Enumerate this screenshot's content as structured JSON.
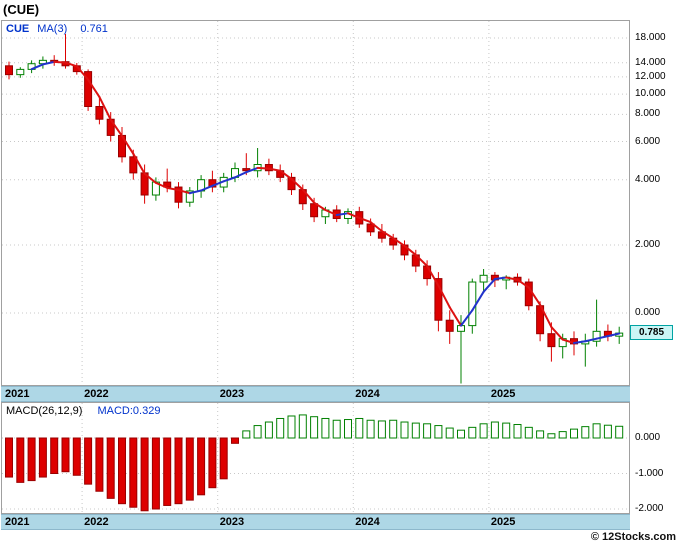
{
  "title": "(CUE)",
  "watermark": "© 12Stocks.com",
  "price_panel": {
    "legend": {
      "symbol": "CUE",
      "ma_label": "MA(3)",
      "ma_value": "0.761"
    },
    "last_price_tag": "0.785",
    "ytick_labels": [
      "18.000",
      "14.000",
      "12.000",
      "10.000",
      "8.000",
      "6.000",
      "4.000",
      "2.000",
      "0.000"
    ]
  },
  "macd_panel": {
    "legend_left": "MACD(26,12,9)",
    "legend_right": "MACD:0.329",
    "ytick_labels": [
      "0.000",
      "-1.000",
      "-2.000"
    ]
  },
  "x_axis": {
    "year_labels": [
      "2021",
      "2022",
      "2023",
      "2024",
      "2025"
    ]
  },
  "colors": {
    "up": "#008000",
    "down": "#dd0000",
    "down_border": "#990000",
    "ma_up": "#2233cc",
    "ma_down": "#dd1111",
    "grid": "#c8c8c8",
    "band_bg": "#aed7e6",
    "tag_bg": "#c9f5f5",
    "tag_border": "#00a3a3",
    "legend_blue": "#0033cc"
  },
  "chart_data": {
    "type": "candlestick+macd",
    "interval": "monthly",
    "ma_period": 3,
    "indicator": "MACD(26,12,9)",
    "price_ylim_labels": [
      18,
      1
    ],
    "macd_ylim": [
      -2.2,
      0.8
    ],
    "year_grid_indices": [
      null,
      7,
      19,
      31,
      43
    ],
    "candles": [
      [
        13.4,
        14.0,
        11.6,
        12.2
      ],
      [
        12.2,
        13.2,
        11.8,
        12.9
      ],
      [
        12.9,
        14.2,
        12.4,
        13.7
      ],
      [
        13.7,
        14.8,
        13.0,
        14.2
      ],
      [
        14.2,
        15.0,
        13.4,
        14.0
      ],
      [
        14.0,
        18.8,
        13.0,
        13.4
      ],
      [
        13.4,
        13.8,
        12.2,
        12.6
      ],
      [
        12.6,
        12.9,
        8.3,
        8.7
      ],
      [
        8.7,
        9.6,
        7.2,
        7.6
      ],
      [
        7.6,
        8.2,
        6.0,
        6.4
      ],
      [
        6.4,
        7.0,
        4.8,
        5.1
      ],
      [
        5.1,
        5.5,
        4.0,
        4.3
      ],
      [
        4.3,
        4.7,
        3.1,
        3.4
      ],
      [
        3.4,
        4.1,
        3.2,
        3.9
      ],
      [
        3.9,
        4.5,
        3.5,
        3.7
      ],
      [
        3.7,
        3.9,
        2.95,
        3.15
      ],
      [
        3.15,
        3.7,
        3.0,
        3.55
      ],
      [
        3.55,
        4.2,
        3.3,
        4.0
      ],
      [
        4.0,
        4.4,
        3.5,
        3.7
      ],
      [
        3.7,
        4.3,
        3.5,
        4.1
      ],
      [
        4.1,
        4.8,
        3.9,
        4.5
      ],
      [
        4.5,
        5.3,
        4.2,
        4.4
      ],
      [
        4.4,
        5.6,
        4.1,
        4.7
      ],
      [
        4.7,
        5.0,
        4.2,
        4.4
      ],
      [
        4.4,
        4.7,
        3.9,
        4.1
      ],
      [
        4.1,
        4.3,
        3.4,
        3.6
      ],
      [
        3.6,
        3.8,
        2.9,
        3.1
      ],
      [
        3.1,
        3.3,
        2.55,
        2.7
      ],
      [
        2.7,
        3.0,
        2.5,
        2.9
      ],
      [
        2.9,
        3.05,
        2.55,
        2.65
      ],
      [
        2.65,
        2.95,
        2.5,
        2.85
      ],
      [
        2.85,
        3.0,
        2.4,
        2.5
      ],
      [
        2.5,
        2.65,
        2.2,
        2.3
      ],
      [
        2.3,
        2.5,
        2.05,
        2.15
      ],
      [
        2.15,
        2.25,
        1.9,
        2.0
      ],
      [
        2.0,
        2.1,
        1.7,
        1.8
      ],
      [
        1.8,
        1.9,
        1.5,
        1.6
      ],
      [
        1.6,
        1.7,
        1.3,
        1.4
      ],
      [
        1.4,
        1.5,
        0.8,
        0.9
      ],
      [
        0.9,
        1.0,
        0.7,
        0.8
      ],
      [
        0.8,
        0.95,
        0.46,
        0.85
      ],
      [
        0.85,
        1.4,
        0.78,
        1.35
      ],
      [
        1.35,
        1.55,
        1.2,
        1.45
      ],
      [
        1.45,
        1.5,
        1.28,
        1.38
      ],
      [
        1.38,
        1.45,
        1.25,
        1.42
      ],
      [
        1.42,
        1.48,
        1.3,
        1.35
      ],
      [
        1.35,
        1.4,
        1.0,
        1.05
      ],
      [
        1.05,
        1.1,
        0.72,
        0.78
      ],
      [
        0.78,
        0.88,
        0.58,
        0.68
      ],
      [
        0.68,
        0.78,
        0.6,
        0.74
      ],
      [
        0.74,
        0.8,
        0.62,
        0.7
      ],
      [
        0.7,
        0.78,
        0.55,
        0.72
      ],
      [
        0.72,
        1.12,
        0.68,
        0.8
      ],
      [
        0.8,
        0.86,
        0.72,
        0.76
      ],
      [
        0.76,
        0.84,
        0.7,
        0.785
      ]
    ],
    "macd": [
      -1.1,
      -1.25,
      -1.2,
      -1.1,
      -1.0,
      -0.95,
      -1.05,
      -1.3,
      -1.5,
      -1.7,
      -1.85,
      -1.95,
      -2.05,
      -2.0,
      -1.9,
      -1.85,
      -1.75,
      -1.6,
      -1.4,
      -1.15,
      -0.15,
      0.2,
      0.35,
      0.45,
      0.55,
      0.62,
      0.65,
      0.6,
      0.55,
      0.5,
      0.52,
      0.55,
      0.5,
      0.48,
      0.5,
      0.45,
      0.42,
      0.4,
      0.35,
      0.28,
      0.22,
      0.3,
      0.4,
      0.45,
      0.42,
      0.38,
      0.3,
      0.2,
      0.12,
      0.18,
      0.25,
      0.32,
      0.4,
      0.36,
      0.33
    ]
  }
}
